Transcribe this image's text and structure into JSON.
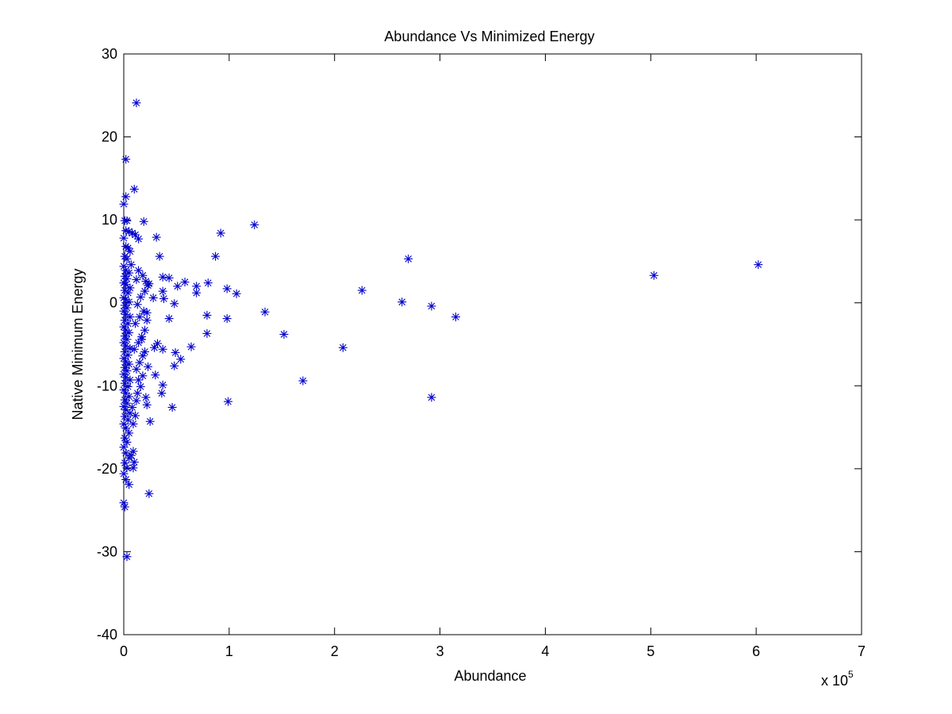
{
  "chart_data": {
    "type": "scatter",
    "title": "Abundance Vs Minimized Energy",
    "xlabel": "Abundance",
    "ylabel": "Native Minimum Energy",
    "x_multiplier_label": {
      "base": "x 10",
      "exponent": "5"
    },
    "xlim": [
      0,
      7
    ],
    "ylim": [
      -40,
      30
    ],
    "x_ticks": [
      0,
      1,
      2,
      3,
      4,
      5,
      6,
      7
    ],
    "y_ticks": [
      -40,
      -30,
      -20,
      -10,
      0,
      10,
      20,
      30
    ],
    "x_tick_labels": [
      "0",
      "1",
      "2",
      "3",
      "4",
      "5",
      "6",
      "7"
    ],
    "y_tick_labels": [
      "-40",
      "-30",
      "-20",
      "-10",
      "0",
      "10",
      "20",
      "30"
    ],
    "marker": "asterisk",
    "marker_color": "#0000cc",
    "grid": false,
    "series": [
      {
        "points": [
          [
            0.12,
            24.1
          ],
          [
            0.02,
            17.3
          ],
          [
            0.1,
            13.7
          ],
          [
            0.02,
            12.8
          ],
          [
            0.0,
            11.9
          ],
          [
            0.19,
            9.8
          ],
          [
            0.01,
            9.9
          ],
          [
            0.03,
            9.9
          ],
          [
            0.02,
            8.7
          ],
          [
            0.05,
            8.6
          ],
          [
            0.08,
            8.4
          ],
          [
            0.11,
            8.2
          ],
          [
            0.14,
            7.7
          ],
          [
            0.0,
            7.8
          ],
          [
            0.02,
            6.8
          ],
          [
            0.04,
            6.6
          ],
          [
            0.06,
            6.2
          ],
          [
            0.01,
            5.6
          ],
          [
            0.03,
            5.3
          ],
          [
            0.07,
            4.6
          ],
          [
            0.0,
            4.4
          ],
          [
            0.02,
            3.9
          ],
          [
            0.05,
            3.6
          ],
          [
            0.01,
            3.2
          ],
          [
            0.03,
            2.9
          ],
          [
            0.0,
            2.4
          ],
          [
            0.02,
            2.2
          ],
          [
            0.06,
            1.8
          ],
          [
            0.01,
            1.5
          ],
          [
            0.04,
            1.2
          ],
          [
            0.0,
            0.6
          ],
          [
            0.02,
            0.4
          ],
          [
            0.05,
            0.1
          ],
          [
            0.01,
            -0.3
          ],
          [
            0.03,
            -0.6
          ],
          [
            0.0,
            -1.0
          ],
          [
            0.02,
            -1.4
          ],
          [
            0.06,
            -1.7
          ],
          [
            0.01,
            -2.1
          ],
          [
            0.04,
            -2.5
          ],
          [
            0.0,
            -2.9
          ],
          [
            0.02,
            -3.3
          ],
          [
            0.05,
            -3.6
          ],
          [
            0.01,
            -4.0
          ],
          [
            0.03,
            -4.4
          ],
          [
            0.0,
            -4.8
          ],
          [
            0.02,
            -5.2
          ],
          [
            0.06,
            -5.5
          ],
          [
            0.01,
            -5.9
          ],
          [
            0.04,
            -6.3
          ],
          [
            0.0,
            -6.7
          ],
          [
            0.02,
            -7.1
          ],
          [
            0.05,
            -7.4
          ],
          [
            0.01,
            -7.8
          ],
          [
            0.03,
            -8.2
          ],
          [
            0.0,
            -8.6
          ],
          [
            0.02,
            -9.0
          ],
          [
            0.06,
            -9.3
          ],
          [
            0.01,
            -9.7
          ],
          [
            0.04,
            -10.1
          ],
          [
            0.0,
            -10.5
          ],
          [
            0.02,
            -10.9
          ],
          [
            0.05,
            -11.3
          ],
          [
            0.01,
            -11.7
          ],
          [
            0.03,
            -12.1
          ],
          [
            0.0,
            -12.5
          ],
          [
            0.02,
            -12.9
          ],
          [
            0.06,
            -13.3
          ],
          [
            0.01,
            -13.7
          ],
          [
            0.04,
            -14.1
          ],
          [
            0.0,
            -14.6
          ],
          [
            0.02,
            -15.1
          ],
          [
            0.05,
            -15.7
          ],
          [
            0.01,
            -16.3
          ],
          [
            0.03,
            -16.8
          ],
          [
            0.0,
            -17.4
          ],
          [
            0.02,
            -18.1
          ],
          [
            0.05,
            -18.7
          ],
          [
            0.01,
            -19.3
          ],
          [
            0.03,
            -19.9
          ],
          [
            0.0,
            -20.6
          ],
          [
            0.02,
            -21.3
          ],
          [
            0.05,
            -21.9
          ],
          [
            0.0,
            -24.1
          ],
          [
            0.01,
            -24.6
          ],
          [
            0.03,
            -30.6
          ],
          [
            0.09,
            -17.9
          ],
          [
            0.1,
            -19.2
          ],
          [
            0.09,
            -19.9
          ],
          [
            0.07,
            -18.4
          ],
          [
            0.09,
            -14.6
          ],
          [
            0.11,
            -13.6
          ],
          [
            0.08,
            -12.6
          ],
          [
            0.12,
            -11.8
          ],
          [
            0.13,
            -10.9
          ],
          [
            0.16,
            -10.1
          ],
          [
            0.14,
            -9.3
          ],
          [
            0.18,
            -8.8
          ],
          [
            0.12,
            -8.0
          ],
          [
            0.15,
            -7.2
          ],
          [
            0.18,
            -6.4
          ],
          [
            0.1,
            -5.6
          ],
          [
            0.14,
            -4.8
          ],
          [
            0.17,
            -4.1
          ],
          [
            0.2,
            -3.3
          ],
          [
            0.11,
            -2.5
          ],
          [
            0.15,
            -1.7
          ],
          [
            0.19,
            -1.0
          ],
          [
            0.22,
            -1.2
          ],
          [
            0.13,
            -0.2
          ],
          [
            0.16,
            0.7
          ],
          [
            0.2,
            1.4
          ],
          [
            0.23,
            2.1
          ],
          [
            0.12,
            2.8
          ],
          [
            0.18,
            3.3
          ],
          [
            0.14,
            3.9
          ],
          [
            0.21,
            2.6
          ],
          [
            0.24,
            2.3
          ],
          [
            0.22,
            -2.1
          ],
          [
            0.17,
            -4.4
          ],
          [
            0.2,
            -5.9
          ],
          [
            0.23,
            -7.7
          ],
          [
            0.21,
            -11.4
          ],
          [
            0.22,
            -12.3
          ],
          [
            0.25,
            -14.3
          ],
          [
            0.24,
            -23.0
          ],
          [
            0.28,
            0.6
          ],
          [
            0.29,
            -5.4
          ],
          [
            0.3,
            -8.7
          ],
          [
            0.32,
            -4.9
          ],
          [
            0.31,
            7.9
          ],
          [
            0.34,
            5.6
          ],
          [
            0.37,
            3.1
          ],
          [
            0.37,
            1.4
          ],
          [
            0.38,
            0.5
          ],
          [
            0.37,
            -5.6
          ],
          [
            0.37,
            -9.9
          ],
          [
            0.36,
            -10.9
          ],
          [
            0.43,
            3.0
          ],
          [
            0.43,
            -1.9
          ],
          [
            0.46,
            -12.6
          ],
          [
            0.48,
            -0.1
          ],
          [
            0.49,
            -6.0
          ],
          [
            0.48,
            -7.6
          ],
          [
            0.51,
            2.0
          ],
          [
            0.54,
            -6.8
          ],
          [
            0.58,
            2.5
          ],
          [
            0.64,
            -5.3
          ],
          [
            0.69,
            2.0
          ],
          [
            0.69,
            1.2
          ],
          [
            0.8,
            2.4
          ],
          [
            0.79,
            -1.5
          ],
          [
            0.79,
            -3.7
          ],
          [
            0.87,
            5.6
          ],
          [
            0.92,
            8.4
          ],
          [
            0.98,
            1.7
          ],
          [
            0.98,
            -1.9
          ],
          [
            0.99,
            -11.9
          ],
          [
            1.07,
            1.1
          ],
          [
            1.24,
            9.4
          ],
          [
            1.34,
            -1.1
          ],
          [
            1.52,
            -3.8
          ],
          [
            1.7,
            -9.4
          ],
          [
            2.08,
            -5.4
          ],
          [
            2.26,
            1.5
          ],
          [
            2.64,
            0.1
          ],
          [
            2.7,
            5.3
          ],
          [
            2.92,
            -0.4
          ],
          [
            2.92,
            -11.4
          ],
          [
            3.15,
            -1.7
          ],
          [
            5.03,
            3.3
          ],
          [
            6.02,
            4.6
          ]
        ]
      }
    ]
  }
}
